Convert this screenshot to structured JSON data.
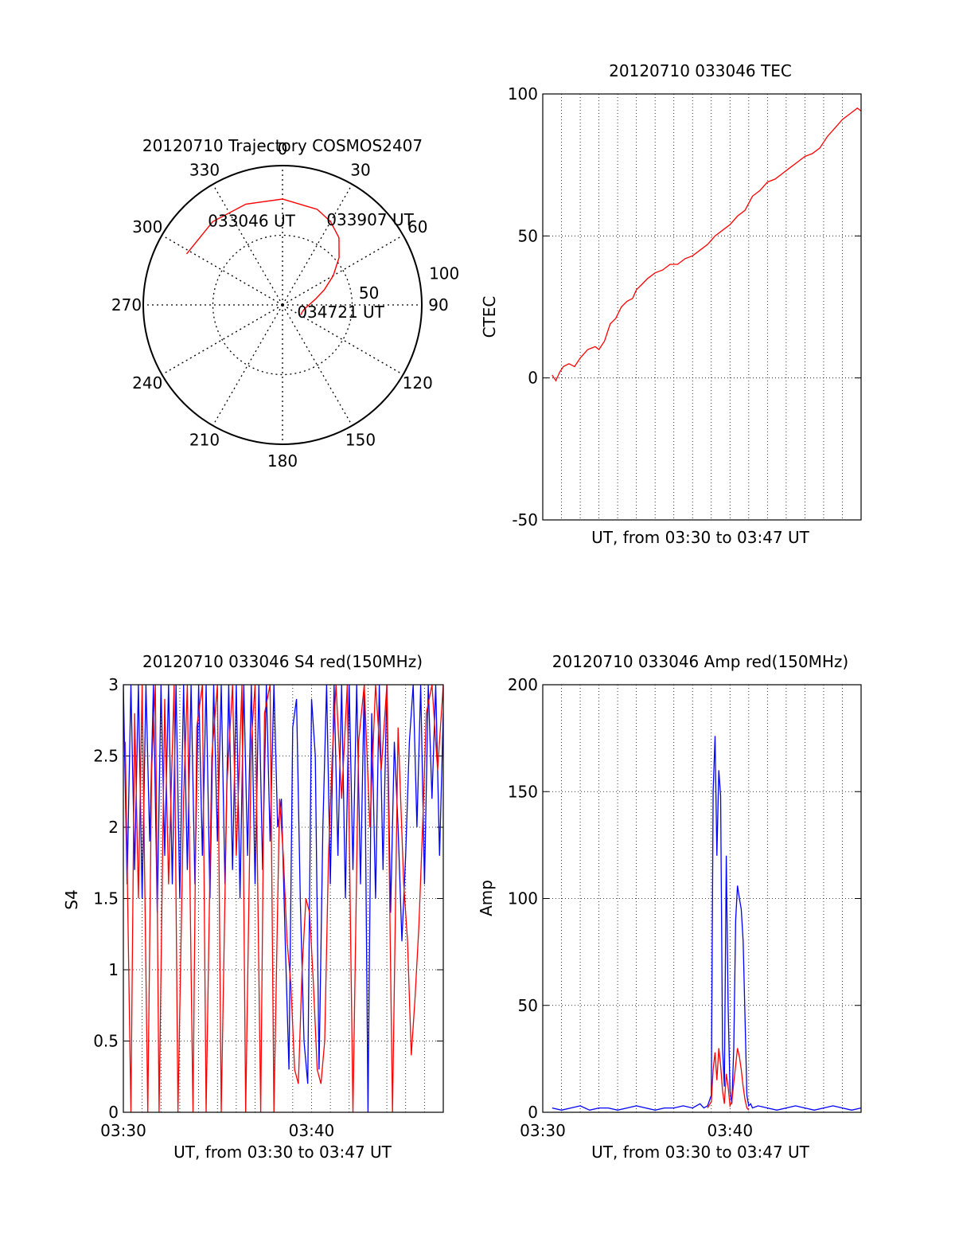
{
  "colors": {
    "red": "#ff0000",
    "blue": "#0000ff",
    "axis": "#000000",
    "grid": "#000000"
  },
  "chart_data": [
    {
      "type": "polar",
      "title": "20120710 Trajectory COSMOS2407",
      "azimuth_labels": [
        "0",
        "30",
        "60",
        "90",
        "120",
        "150",
        "180",
        "210",
        "240",
        "270",
        "300",
        "330"
      ],
      "radial_labels": [
        "50",
        "100"
      ],
      "radial_max": 100,
      "grid": true,
      "series": [
        {
          "color": "red",
          "points": [
            [
              -62,
              78
            ],
            [
              -40,
              78
            ],
            [
              -20,
              77
            ],
            [
              0,
              76
            ],
            [
              20,
              73
            ],
            [
              30,
              69
            ],
            [
              40,
              63
            ],
            [
              50,
              53
            ],
            [
              60,
              42
            ],
            [
              70,
              32
            ],
            [
              80,
              24
            ],
            [
              90,
              19
            ],
            [
              100,
              16
            ],
            [
              110,
              15
            ],
            [
              118,
              15
            ]
          ]
        }
      ],
      "annotations": [
        {
          "text": "033046 UT",
          "az": -40,
          "zen": 78
        },
        {
          "text": "033907 UT",
          "az": 30,
          "zen": 70
        },
        {
          "text": "034721 UT",
          "az": 112,
          "zen": 15
        }
      ]
    },
    {
      "type": "line",
      "title": "20120710 033046 TEC",
      "xlabel": "UT, from 03:30 to 03:47 UT",
      "ylabel": "CTEC",
      "ylim": [
        -50,
        100
      ],
      "yticks": [
        -50,
        0,
        50,
        100
      ],
      "xlim": [
        0,
        17
      ],
      "grid": true,
      "series": [
        {
          "color": "red",
          "x": [
            0.5,
            0.7,
            0.9,
            1.1,
            1.4,
            1.7,
            2.0,
            2.4,
            2.8,
            3.0,
            3.3,
            3.6,
            3.9,
            4.2,
            4.5,
            4.8,
            5.0,
            5.3,
            5.6,
            6.0,
            6.4,
            6.8,
            7.2,
            7.6,
            8.0,
            8.4,
            8.8,
            9.2,
            9.6,
            10.0,
            10.4,
            10.8,
            11.2,
            11.6,
            12.0,
            12.4,
            12.8,
            13.2,
            13.6,
            14.0,
            14.4,
            14.8,
            15.2,
            15.6,
            16.0,
            16.4,
            16.8,
            17.0
          ],
          "y": [
            1,
            -1,
            2,
            4,
            5,
            4,
            7,
            10,
            11,
            10,
            13,
            19,
            21,
            25,
            27,
            28,
            31,
            33,
            35,
            37,
            38,
            40,
            40,
            42,
            43,
            45,
            47,
            50,
            52,
            54,
            57,
            59,
            64,
            66,
            69,
            70,
            72,
            74,
            76,
            78,
            79,
            81,
            85,
            88,
            91,
            93,
            95,
            94
          ]
        }
      ]
    },
    {
      "type": "line",
      "title": "20120710 033046 S4 red(150MHz)",
      "xlabel": "UT, from 03:30 to 03:47 UT",
      "ylabel": "S4",
      "ylim": [
        0,
        3
      ],
      "yticks": [
        0,
        0.5,
        1,
        1.5,
        2,
        2.5,
        3
      ],
      "ytick_labels": [
        "0",
        "0.5",
        "1",
        "1.5",
        "2",
        "2.5",
        "3"
      ],
      "xlim": [
        0,
        17
      ],
      "xticks": [
        0,
        10
      ],
      "xtick_labels": [
        "03:30",
        "03:40"
      ],
      "grid": true,
      "series": [
        {
          "color": "red",
          "x": [
            0.1,
            0.4,
            0.6,
            0.8,
            1.0,
            1.3,
            1.5,
            1.7,
            1.9,
            2.2,
            2.4,
            2.7,
            2.9,
            3.2,
            3.4,
            3.7,
            3.9,
            4.2,
            4.4,
            4.7,
            5.0,
            5.2,
            5.5,
            5.8,
            6.0,
            6.3,
            6.5,
            6.8,
            7.0,
            7.3,
            7.5,
            7.8,
            8.0,
            8.3,
            8.5,
            8.7,
            8.9,
            9.1,
            9.3,
            9.5,
            9.7,
            9.9,
            10.1,
            10.3,
            10.5,
            10.7,
            10.9,
            11.1,
            11.3,
            11.6,
            11.9,
            12.2,
            12.5,
            12.8,
            13.1,
            13.4,
            13.7,
            14.0,
            14.3,
            14.6,
            14.9,
            15.1,
            15.3,
            15.5,
            15.7,
            15.9,
            16.1,
            16.4,
            16.7,
            17.0
          ],
          "y": [
            2.6,
            0,
            2.8,
            1.5,
            3,
            0,
            2.4,
            3,
            0,
            2.9,
            1.6,
            3,
            0,
            2.2,
            3,
            0,
            2.7,
            3,
            0,
            2.5,
            3,
            0,
            2.3,
            3,
            1.8,
            3,
            0,
            2.6,
            3,
            0,
            2.8,
            3,
            0,
            2.2,
            1.8,
            1.2,
            0.9,
            0.3,
            0.2,
            1.0,
            1.5,
            1.4,
            0.9,
            0.3,
            0.2,
            0.5,
            1.8,
            2.5,
            3,
            2.2,
            3,
            0,
            2.6,
            3,
            2.0,
            3,
            2.4,
            3,
            0,
            2.7,
            1.6,
            1.2,
            0.4,
            0.8,
            1.3,
            2.0,
            2.8,
            3,
            2.4,
            3
          ]
        },
        {
          "color": "blue",
          "x": [
            0.0,
            0.2,
            0.4,
            0.6,
            0.8,
            1.0,
            1.2,
            1.4,
            1.6,
            1.8,
            2.0,
            2.2,
            2.4,
            2.6,
            2.8,
            3.0,
            3.2,
            3.4,
            3.6,
            3.8,
            4.0,
            4.2,
            4.4,
            4.6,
            4.8,
            5.0,
            5.2,
            5.4,
            5.6,
            5.8,
            6.0,
            6.2,
            6.4,
            6.6,
            6.8,
            7.0,
            7.2,
            7.4,
            7.6,
            7.8,
            8.0,
            8.2,
            8.4,
            8.6,
            8.8,
            9.0,
            9.2,
            9.4,
            9.6,
            9.8,
            10.0,
            10.2,
            10.4,
            10.6,
            10.8,
            11.0,
            11.2,
            11.4,
            11.6,
            11.8,
            12.0,
            12.2,
            12.4,
            12.6,
            12.8,
            13.0,
            13.2,
            13.4,
            13.6,
            13.8,
            14.0,
            14.2,
            14.4,
            14.6,
            14.8,
            15.0,
            15.2,
            15.4,
            15.6,
            15.8,
            16.0,
            16.2,
            16.4,
            16.6,
            16.8,
            17.0
          ],
          "y": [
            3,
            1.6,
            3,
            1.7,
            3,
            1.5,
            3,
            1.9,
            3,
            1.4,
            3,
            1.8,
            3,
            1.6,
            3,
            1.5,
            3,
            1.7,
            3,
            1.6,
            3,
            1.8,
            3,
            1.5,
            3,
            1.9,
            3,
            1.6,
            3,
            1.7,
            3,
            1.5,
            3,
            1.8,
            3,
            1.6,
            3,
            1.7,
            3,
            1.9,
            3,
            2.0,
            2.2,
            1.2,
            0.3,
            2.7,
            2.9,
            1.5,
            0.5,
            0.2,
            2.9,
            2.5,
            0.3,
            2.0,
            3,
            1.6,
            3,
            1.8,
            3,
            1.5,
            3,
            1.7,
            3,
            1.6,
            3,
            0,
            2.8,
            1.5,
            3,
            1.7,
            3,
            1.4,
            2.6,
            2.0,
            1.2,
            1.8,
            2.6,
            3,
            2.0,
            3,
            1.6,
            3,
            2.2,
            3,
            1.8,
            2.8
          ]
        }
      ]
    },
    {
      "type": "line",
      "title": "20120710 033046 Amp red(150MHz)",
      "xlabel": "UT, from 03:30 to 03:47 UT",
      "ylabel": "Amp",
      "ylim": [
        0,
        200
      ],
      "yticks": [
        0,
        50,
        100,
        150,
        200
      ],
      "ytick_labels": [
        "0",
        "50",
        "100",
        "150",
        "200"
      ],
      "xlim": [
        0,
        17
      ],
      "xticks": [
        0,
        10
      ],
      "xtick_labels": [
        "03:30",
        "03:40"
      ],
      "grid": true,
      "series": [
        {
          "color": "blue",
          "x": [
            0.5,
            1.0,
            1.5,
            2.0,
            2.5,
            3.0,
            3.5,
            4.0,
            4.5,
            5.0,
            5.5,
            6.0,
            6.5,
            7.0,
            7.5,
            8.0,
            8.2,
            8.4,
            8.6,
            8.8,
            9.0,
            9.1,
            9.2,
            9.3,
            9.4,
            9.5,
            9.6,
            9.7,
            9.8,
            9.9,
            10.0,
            10.1,
            10.2,
            10.3,
            10.4,
            10.5,
            10.6,
            10.7,
            10.8,
            10.9,
            11.0,
            11.1,
            11.2,
            11.5,
            12.0,
            12.5,
            13.0,
            13.5,
            14.0,
            14.5,
            15.0,
            15.5,
            16.0,
            16.5,
            17.0
          ],
          "y": [
            2,
            1,
            2,
            3,
            1,
            2,
            2,
            1,
            2,
            3,
            2,
            1,
            2,
            2,
            3,
            2,
            3,
            4,
            2,
            3,
            8,
            150,
            176,
            120,
            160,
            148,
            30,
            12,
            120,
            50,
            10,
            4,
            30,
            90,
            106,
            100,
            95,
            80,
            45,
            8,
            3,
            4,
            2,
            3,
            2,
            1,
            2,
            3,
            2,
            1,
            2,
            3,
            2,
            1,
            2
          ]
        },
        {
          "color": "red",
          "x": [
            8.8,
            9.0,
            9.1,
            9.2,
            9.3,
            9.4,
            9.5,
            9.6,
            9.7,
            9.8,
            9.9,
            10.0,
            10.1,
            10.2,
            10.3,
            10.4,
            10.5,
            10.6,
            10.7,
            10.8,
            10.9,
            11.0
          ],
          "y": [
            2,
            5,
            20,
            28,
            15,
            30,
            22,
            10,
            4,
            18,
            12,
            3,
            5,
            14,
            22,
            30,
            26,
            20,
            12,
            6,
            2,
            1
          ]
        }
      ]
    }
  ]
}
